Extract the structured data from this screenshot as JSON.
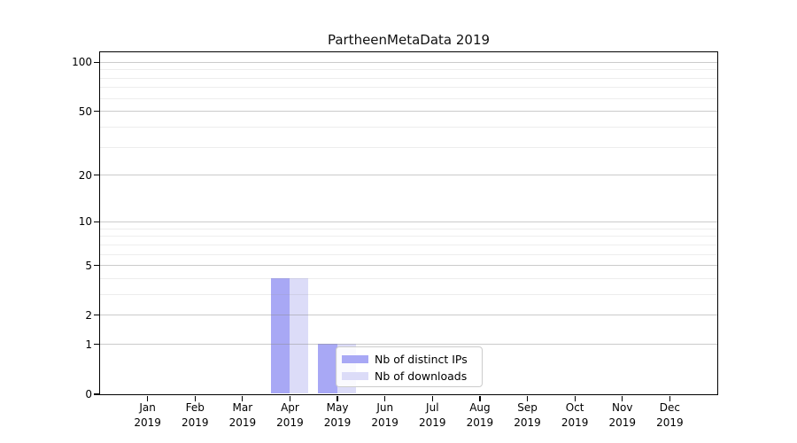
{
  "title": "PartheenMetaData 2019",
  "chart_data": {
    "type": "bar",
    "title": "PartheenMetaData 2019",
    "categories": [
      "Jan",
      "Feb",
      "Mar",
      "Apr",
      "May",
      "Jun",
      "Jul",
      "Aug",
      "Sep",
      "Oct",
      "Nov",
      "Dec"
    ],
    "year": "2019",
    "series": [
      {
        "name": "Nb of distinct IPs",
        "color": "#a8a8f5",
        "values": [
          0,
          0,
          0,
          4,
          1,
          0,
          0,
          0,
          0,
          0,
          0,
          0
        ]
      },
      {
        "name": "Nb of downloads",
        "color": "#dcdcf8",
        "values": [
          0,
          0,
          0,
          4,
          1,
          0,
          0,
          0,
          0,
          0,
          0,
          0
        ]
      }
    ],
    "xlabel": "",
    "ylabel": "",
    "yscale": "symlog",
    "yticks": [
      0,
      1,
      2,
      5,
      10,
      20,
      50,
      100
    ],
    "minor_yticks": [
      3,
      4,
      6,
      7,
      8,
      9,
      30,
      40,
      60,
      70,
      80,
      90
    ],
    "ylim": [
      0,
      115.1
    ],
    "grid": "horizontal",
    "legend_position": "inside-bottom-center"
  },
  "colors": {
    "distinct_ips": "#a8a8f5",
    "downloads": "#dcdcf8",
    "grid_major": "#d0d0d0",
    "grid_minor": "#ececec",
    "axis": "#000000",
    "legend_border": "#cccccc",
    "background": "#ffffff"
  }
}
